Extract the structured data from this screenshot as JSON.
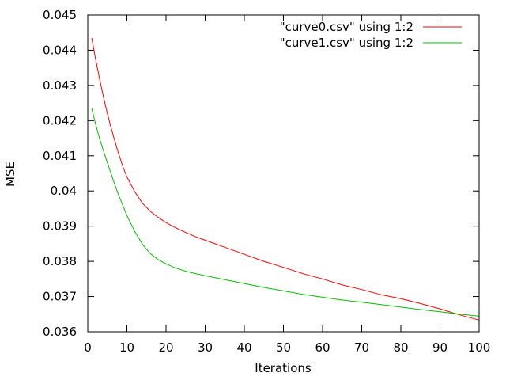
{
  "chart_data": {
    "type": "line",
    "title": "",
    "xlabel": "Iterations",
    "ylabel": "MSE",
    "xlim": [
      0,
      100
    ],
    "ylim": [
      0.036,
      0.045
    ],
    "xticks": [
      "0",
      "10",
      "20",
      "30",
      "40",
      "50",
      "60",
      "70",
      "80",
      "90",
      "100"
    ],
    "yticks": [
      "0.036",
      "0.037",
      "0.038",
      "0.039",
      "0.04",
      "0.041",
      "0.042",
      "0.043",
      "0.044",
      "0.045"
    ],
    "grid": false,
    "legend_position": "top-right",
    "x": [
      1,
      2,
      3,
      4,
      5,
      6,
      7,
      8,
      9,
      10,
      12,
      14,
      16,
      18,
      20,
      22,
      25,
      28,
      30,
      35,
      40,
      45,
      50,
      55,
      60,
      65,
      70,
      75,
      80,
      85,
      90,
      95,
      100
    ],
    "series": [
      {
        "name": "\"curve0.csv\" using 1:2",
        "color": "#ff0000",
        "values": [
          0.04435,
          0.04375,
          0.0432,
          0.04268,
          0.0422,
          0.04178,
          0.04138,
          0.04102,
          0.04068,
          0.0404,
          0.03998,
          0.03965,
          0.03942,
          0.03925,
          0.0391,
          0.03898,
          0.03882,
          0.03868,
          0.0386,
          0.0384,
          0.0382,
          0.038,
          0.03783,
          0.03765,
          0.0375,
          0.03733,
          0.0372,
          0.03705,
          0.03694,
          0.0368,
          0.03665,
          0.03648,
          0.03633
        ]
      },
      {
        "name": "\"curve1.csv\" using 1:2",
        "color": "#00c000",
        "values": [
          0.04235,
          0.0419,
          0.0415,
          0.04115,
          0.0408,
          0.04048,
          0.04015,
          0.03985,
          0.03958,
          0.0393,
          0.03885,
          0.03848,
          0.03822,
          0.03805,
          0.03793,
          0.03783,
          0.03772,
          0.03764,
          0.03759,
          0.03748,
          0.03737,
          0.03726,
          0.03716,
          0.03706,
          0.03698,
          0.0369,
          0.03684,
          0.03677,
          0.0367,
          0.03663,
          0.03657,
          0.0365,
          0.03644
        ]
      }
    ]
  }
}
